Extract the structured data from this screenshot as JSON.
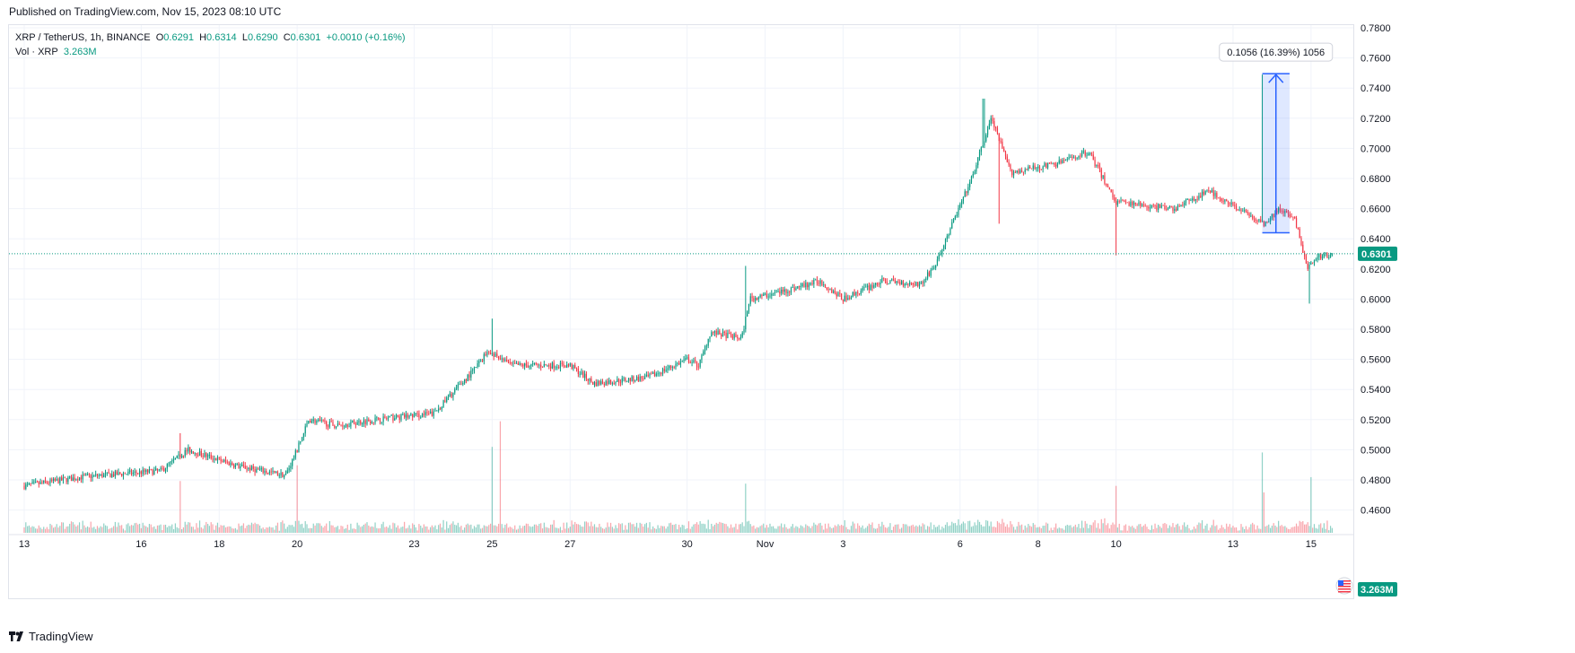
{
  "header": {
    "published": "Published on TradingView.com, Nov 15, 2023 08:10 UTC"
  },
  "legend": {
    "symbol": "XRP / TetherUS, 1h, BINANCE",
    "o_label": "O",
    "o_value": "0.6291",
    "h_label": "H",
    "h_value": "0.6314",
    "l_label": "L",
    "l_value": "0.6290",
    "c_label": "C",
    "c_value": "0.6301",
    "change": "+0.0010 (+0.16%)",
    "vol_label": "Vol · XRP",
    "vol_value": "3.263M"
  },
  "footer": {
    "brand": "TradingView"
  },
  "colors": {
    "up": "#089981",
    "down": "#f23645",
    "measure": "#2962ff",
    "grid": "#f0f3fa"
  },
  "chart_data": {
    "type": "candlestick",
    "symbol": "XRP / TetherUS",
    "interval": "1h",
    "exchange": "BINANCE",
    "y_axis": {
      "range": [
        0.45,
        0.785
      ],
      "ticks": [
        "0.7800",
        "0.7600",
        "0.7400",
        "0.7200",
        "0.7000",
        "0.6800",
        "0.6600",
        "0.6400",
        "0.6200",
        "0.6000",
        "0.5800",
        "0.5600",
        "0.5400",
        "0.5200",
        "0.5000",
        "0.4800",
        "0.4600"
      ]
    },
    "x_axis": {
      "ticks": [
        {
          "label": "13",
          "day": 0
        },
        {
          "label": "16",
          "day": 3
        },
        {
          "label": "18",
          "day": 5
        },
        {
          "label": "20",
          "day": 7
        },
        {
          "label": "23",
          "day": 10
        },
        {
          "label": "25",
          "day": 12
        },
        {
          "label": "27",
          "day": 14
        },
        {
          "label": "30",
          "day": 17
        },
        {
          "label": "Nov",
          "day": 19
        },
        {
          "label": "3",
          "day": 21
        },
        {
          "label": "6",
          "day": 24
        },
        {
          "label": "8",
          "day": 26
        },
        {
          "label": "10",
          "day": 28
        },
        {
          "label": "13",
          "day": 31
        },
        {
          "label": "15",
          "day": 33
        }
      ]
    },
    "price_path": [
      {
        "day": 0.0,
        "price": 0.476
      },
      {
        "day": 1.5,
        "price": 0.482
      },
      {
        "day": 3.5,
        "price": 0.486
      },
      {
        "day": 4.2,
        "price": 0.5
      },
      {
        "day": 5.5,
        "price": 0.489
      },
      {
        "day": 6.7,
        "price": 0.483
      },
      {
        "day": 7.0,
        "price": 0.5
      },
      {
        "day": 7.3,
        "price": 0.52
      },
      {
        "day": 8.0,
        "price": 0.516
      },
      {
        "day": 9.0,
        "price": 0.52
      },
      {
        "day": 10.5,
        "price": 0.524
      },
      {
        "day": 11.5,
        "price": 0.552
      },
      {
        "day": 11.9,
        "price": 0.566
      },
      {
        "day": 12.5,
        "price": 0.556
      },
      {
        "day": 14.0,
        "price": 0.556
      },
      {
        "day": 14.6,
        "price": 0.544
      },
      {
        "day": 16.0,
        "price": 0.548
      },
      {
        "day": 17.0,
        "price": 0.56
      },
      {
        "day": 17.3,
        "price": 0.556
      },
      {
        "day": 17.6,
        "price": 0.578
      },
      {
        "day": 18.4,
        "price": 0.574
      },
      {
        "day": 18.6,
        "price": 0.6
      },
      {
        "day": 19.6,
        "price": 0.606
      },
      {
        "day": 20.4,
        "price": 0.612
      },
      {
        "day": 21.0,
        "price": 0.6
      },
      {
        "day": 22.0,
        "price": 0.612
      },
      {
        "day": 23.0,
        "price": 0.61
      },
      {
        "day": 23.4,
        "price": 0.624
      },
      {
        "day": 23.8,
        "price": 0.65
      },
      {
        "day": 24.3,
        "price": 0.68
      },
      {
        "day": 24.8,
        "price": 0.72
      },
      {
        "day": 25.3,
        "price": 0.684
      },
      {
        "day": 26.5,
        "price": 0.69
      },
      {
        "day": 27.3,
        "price": 0.698
      },
      {
        "day": 28.0,
        "price": 0.664
      },
      {
        "day": 29.5,
        "price": 0.66
      },
      {
        "day": 30.4,
        "price": 0.672
      },
      {
        "day": 31.1,
        "price": 0.66
      },
      {
        "day": 31.8,
        "price": 0.65
      },
      {
        "day": 32.2,
        "price": 0.66
      },
      {
        "day": 32.6,
        "price": 0.652
      },
      {
        "day": 32.9,
        "price": 0.62
      },
      {
        "day": 33.2,
        "price": 0.628
      },
      {
        "day": 33.55,
        "price": 0.63
      }
    ],
    "spikes": [
      {
        "day": 4.0,
        "high": 0.511
      },
      {
        "day": 12.0,
        "high": 0.587
      },
      {
        "day": 18.5,
        "high": 0.622
      },
      {
        "day": 24.6,
        "high": 0.733
      },
      {
        "day": 25.0,
        "low": 0.65
      },
      {
        "day": 28.0,
        "low": 0.629
      },
      {
        "day": 31.75,
        "high": 0.749
      },
      {
        "day": 32.95,
        "low": 0.597
      }
    ],
    "volume": {
      "label": "Vol · XRP",
      "last": "3.263M",
      "spikes_days": [
        4.0,
        7.0,
        12.0,
        12.2,
        18.5,
        28.0,
        31.75,
        31.8,
        33.0
      ]
    },
    "last_price": "0.6301",
    "last_price_value": 0.6301,
    "measure_tool": {
      "label": "0.1056 (16.39%) 1056",
      "from": 0.644,
      "to": 0.7496,
      "day_start": 31.75,
      "day_end": 32.45
    }
  }
}
